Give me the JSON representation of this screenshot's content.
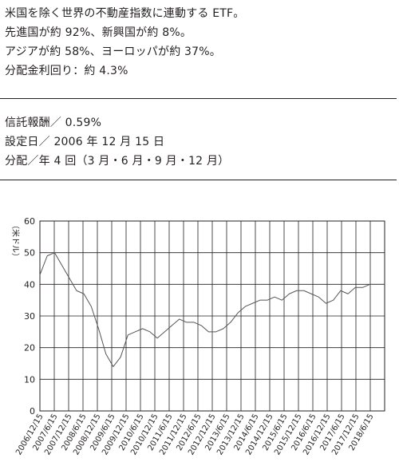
{
  "summary": {
    "line1": "米国を除く世界の不動産指数に連動する ETF。",
    "line2": "先進国が約 92%、新興国が約 8%。",
    "line3": "アジアが約 58%、ヨーロッパが約 37%。",
    "line4": "分配金利回り：約 4.3%"
  },
  "details": {
    "fee": "信託報酬／ 0.59%",
    "inception": "設定日／ 2006 年 12 月 15 日",
    "distribution": "分配／年 4 回（3 月・6 月・9 月・12 月）"
  },
  "chart_data": {
    "type": "line",
    "title": "",
    "xlabel": "",
    "ylabel": "（米ドル）",
    "ylim": [
      0,
      60
    ],
    "yticks": [
      "0",
      "10",
      "20",
      "30",
      "40",
      "50",
      "60"
    ],
    "xticks": [
      "2006/12/15",
      "2007/6/15",
      "2007/12/15",
      "2008/6/15",
      "2008/12/15",
      "2009/6/15",
      "2009/12/15",
      "2010/6/15",
      "2010/12/15",
      "2011/6/15",
      "2011/12/15",
      "2012/6/15",
      "2012/12/15",
      "2013/6/15",
      "2013/12/15",
      "2014/6/15",
      "2014/12/15",
      "2015/6/15",
      "2015/12/15",
      "2016/6/15",
      "2016/12/15",
      "2017/6/15",
      "2017/12/15",
      "2018/6/15"
    ],
    "grid": true,
    "legend": "none",
    "line_color": "#555555",
    "series": [
      {
        "values": [
          43,
          49,
          50,
          46,
          42,
          38,
          37,
          33,
          26,
          18,
          14,
          17,
          24,
          25,
          26,
          25,
          23,
          25,
          27,
          29,
          28,
          28,
          27,
          25,
          25,
          26,
          28,
          31,
          33,
          34,
          35,
          35,
          36,
          35,
          37,
          38,
          38,
          37,
          36,
          34,
          35,
          38,
          37,
          39,
          39,
          40,
          40,
          40
        ]
      }
    ]
  }
}
